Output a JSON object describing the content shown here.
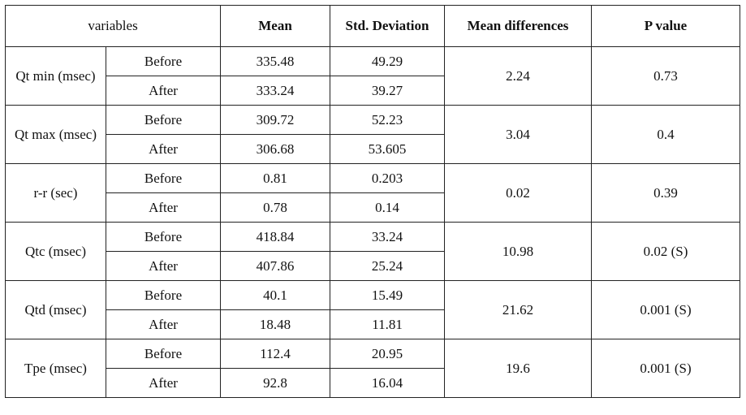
{
  "headers": {
    "variables": "variables",
    "mean": "Mean",
    "std": "Std. Deviation",
    "mean_diff": "Mean differences",
    "p_value": "P value"
  },
  "rows": [
    {
      "variable": "Qt min (msec)",
      "before": {
        "label": "Before",
        "mean": "335.48",
        "std": "49.29"
      },
      "after": {
        "label": "After",
        "mean": "333.24",
        "std": "39.27"
      },
      "mean_diff": "2.24",
      "p_value": "0.73"
    },
    {
      "variable": "Qt max (msec)",
      "before": {
        "label": "Before",
        "mean": "309.72",
        "std": "52.23"
      },
      "after": {
        "label": "After",
        "mean": "306.68",
        "std": "53.605"
      },
      "mean_diff": "3.04",
      "p_value": "0.4"
    },
    {
      "variable": "r-r (sec)",
      "before": {
        "label": "Before",
        "mean": "0.81",
        "std": "0.203"
      },
      "after": {
        "label": "After",
        "mean": "0.78",
        "std": "0.14"
      },
      "mean_diff": "0.02",
      "p_value": "0.39"
    },
    {
      "variable": "Qtc (msec)",
      "before": {
        "label": "Before",
        "mean": "418.84",
        "std": "33.24"
      },
      "after": {
        "label": "After",
        "mean": "407.86",
        "std": "25.24"
      },
      "mean_diff": "10.98",
      "p_value": "0.02 (S)"
    },
    {
      "variable": "Qtd (msec)",
      "before": {
        "label": "Before",
        "mean": "40.1",
        "std": "15.49"
      },
      "after": {
        "label": "After",
        "mean": "18.48",
        "std": "11.81"
      },
      "mean_diff": "21.62",
      "p_value": "0.001 (S)"
    },
    {
      "variable": "Tpe (msec)",
      "before": {
        "label": "Before",
        "mean": "112.4",
        "std": "20.95"
      },
      "after": {
        "label": "After",
        "mean": "92.8",
        "std": "16.04"
      },
      "mean_diff": "19.6",
      "p_value": "0.001 (S)"
    }
  ]
}
